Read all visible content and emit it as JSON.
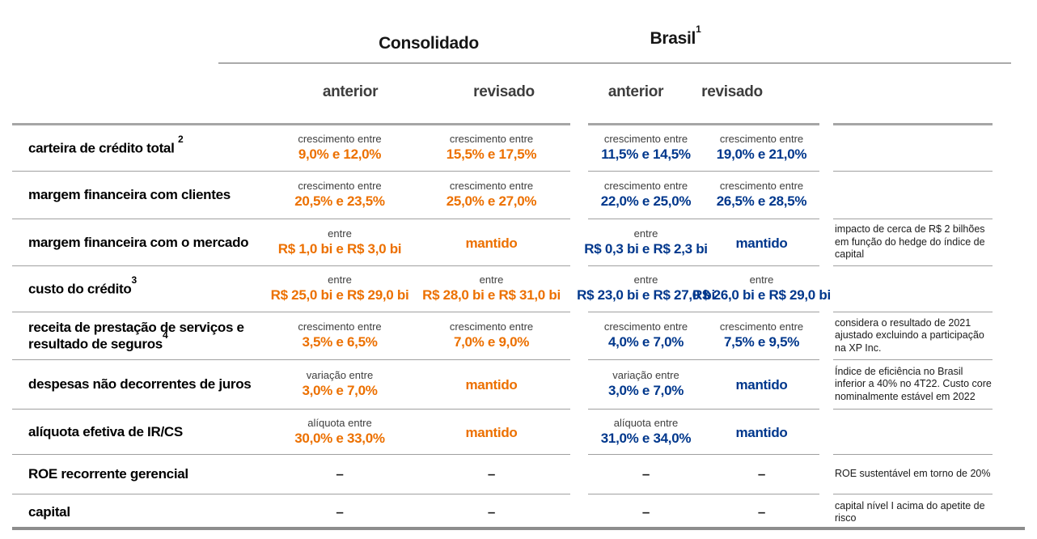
{
  "header": {
    "consolidado": "Consolidado",
    "brasil": "Brasil",
    "brasil_sup": "1",
    "sub_anterior": "anterior",
    "sub_revisado": "revisado"
  },
  "colors": {
    "consolidado_accent": "#EC7000",
    "brasil_accent": "#00378C",
    "separator": "#A0A0A0"
  },
  "rows": [
    {
      "label": "carteira de crédito total ",
      "sup": "2",
      "c_ant": {
        "type": "range",
        "caption": "crescimento entre",
        "value": "9,0% e 12,0%"
      },
      "c_rev": {
        "type": "range",
        "caption": "crescimento entre",
        "value": "15,5% e 17,5%"
      },
      "b_ant": {
        "type": "range",
        "caption": "crescimento entre",
        "value": "11,5% e 14,5%"
      },
      "b_rev": {
        "type": "range",
        "caption": "crescimento entre",
        "value": "19,0% e 21,0%"
      },
      "note": ""
    },
    {
      "label": "margem financeira com clientes",
      "sup": "",
      "c_ant": {
        "type": "range",
        "caption": "crescimento entre",
        "value": "20,5% e 23,5%"
      },
      "c_rev": {
        "type": "range",
        "caption": "crescimento entre",
        "value": "25,0% e 27,0%"
      },
      "b_ant": {
        "type": "range",
        "caption": "crescimento entre",
        "value": "22,0% e 25,0%"
      },
      "b_rev": {
        "type": "range",
        "caption": "crescimento entre",
        "value": "26,5% e 28,5%"
      },
      "note": ""
    },
    {
      "label": "margem financeira com o mercado",
      "sup": "",
      "c_ant": {
        "type": "range",
        "caption": "entre",
        "value": "R$ 1,0 bi e R$ 3,0 bi"
      },
      "c_rev": {
        "type": "kept",
        "value": "mantido"
      },
      "b_ant": {
        "type": "range",
        "caption": "entre",
        "value": "R$ 0,3 bi e R$ 2,3 bi"
      },
      "b_rev": {
        "type": "kept",
        "value": "mantido"
      },
      "note": "impacto de cerca de R$ 2 bilhões em função do hedge do índice de capital"
    },
    {
      "label": "custo do crédito",
      "sup": "3",
      "c_ant": {
        "type": "range",
        "caption": "entre",
        "value": "R$ 25,0 bi e R$ 29,0 bi"
      },
      "c_rev": {
        "type": "range",
        "caption": "entre",
        "value": "R$ 28,0 bi e R$ 31,0 bi"
      },
      "b_ant": {
        "type": "range",
        "caption": "entre",
        "value": "R$ 23,0 bi e R$ 27,0 bi"
      },
      "b_rev": {
        "type": "range",
        "caption": "entre",
        "value": "R$ 26,0 bi e R$ 29,0 bi"
      },
      "note": ""
    },
    {
      "label": "receita de prestação de serviços e resultado de seguros",
      "sup": "4",
      "c_ant": {
        "type": "range",
        "caption": "crescimento entre",
        "value": "3,5% e 6,5%"
      },
      "c_rev": {
        "type": "range",
        "caption": "crescimento entre",
        "value": "7,0% e 9,0%"
      },
      "b_ant": {
        "type": "range",
        "caption": "crescimento entre",
        "value": "4,0% e 7,0%"
      },
      "b_rev": {
        "type": "range",
        "caption": "crescimento entre",
        "value": "7,5% e 9,5%"
      },
      "note": "considera o resultado de 2021 ajustado excluindo a participação na XP Inc."
    },
    {
      "label": "despesas não decorrentes de juros",
      "sup": "",
      "c_ant": {
        "type": "range",
        "caption": "variação entre",
        "value": "3,0% e 7,0%"
      },
      "c_rev": {
        "type": "kept",
        "value": "mantido"
      },
      "b_ant": {
        "type": "range",
        "caption": "variação entre",
        "value": "3,0% e 7,0%"
      },
      "b_rev": {
        "type": "kept",
        "value": "mantido"
      },
      "note": "Índice de eficiência no Brasil inferior a 40% no 4T22. Custo core nominalmente estável em 2022"
    },
    {
      "label": "alíquota efetiva de IR/CS",
      "sup": "",
      "c_ant": {
        "type": "range",
        "caption": "alíquota entre",
        "value": "30,0% e 33,0%"
      },
      "c_rev": {
        "type": "kept",
        "value": "mantido"
      },
      "b_ant": {
        "type": "range",
        "caption": "alíquota entre",
        "value": "31,0% e 34,0%"
      },
      "b_rev": {
        "type": "kept",
        "value": "mantido"
      },
      "note": ""
    },
    {
      "label": "ROE recorrente gerencial",
      "sup": "",
      "c_ant": {
        "type": "dash",
        "value": "–"
      },
      "c_rev": {
        "type": "dash",
        "value": "–"
      },
      "b_ant": {
        "type": "dash",
        "value": "–"
      },
      "b_rev": {
        "type": "dash",
        "value": "–"
      },
      "note": "ROE sustentável em torno de 20%"
    },
    {
      "label": "capital",
      "sup": "",
      "c_ant": {
        "type": "dash",
        "value": "–"
      },
      "c_rev": {
        "type": "dash",
        "value": "–"
      },
      "b_ant": {
        "type": "dash",
        "value": "–"
      },
      "b_rev": {
        "type": "dash",
        "value": "–"
      },
      "note": "capital nível I acima do apetite de risco"
    }
  ]
}
